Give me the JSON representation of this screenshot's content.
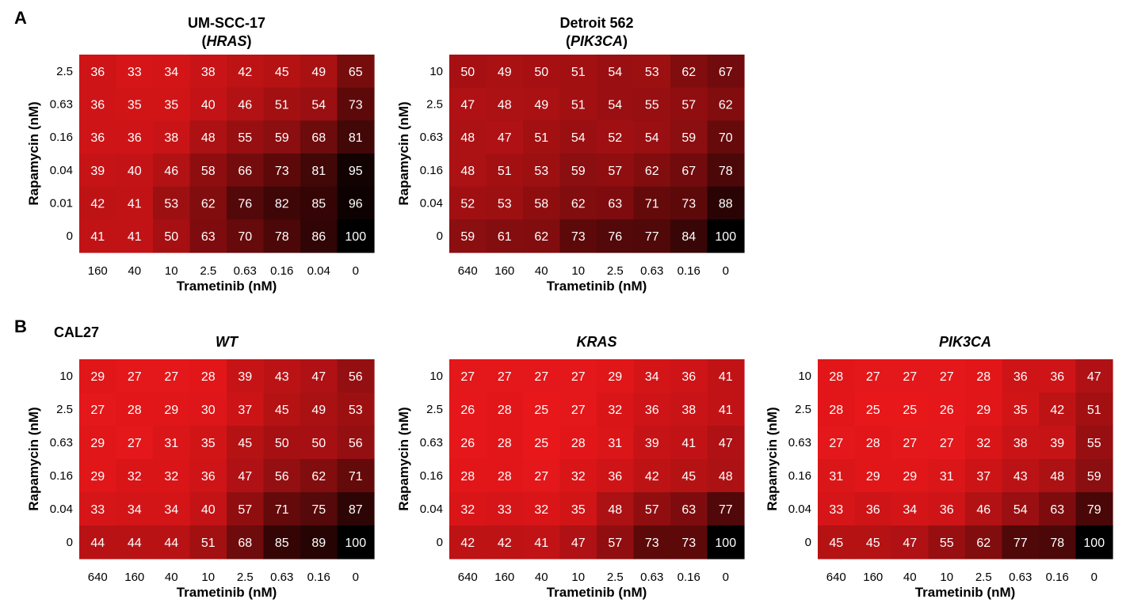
{
  "figure": {
    "panel_labels": [
      "A",
      "B"
    ],
    "panel_b_note": "CAL27",
    "scale": {
      "low_color": "#e8171a",
      "high_color": "#000000",
      "min": 25,
      "max": 100
    }
  },
  "chart_data": [
    {
      "type": "heatmap",
      "panel": "A",
      "title": "UM-SCC-17",
      "subtitle": "(HRAS)",
      "subtitle_parts": [
        "(",
        "HRAS",
        ")"
      ],
      "xlabel": "Trametinib (nM)",
      "ylabel": "Rapamycin (nM)",
      "x": [
        "160",
        "40",
        "10",
        "2.5",
        "0.63",
        "0.16",
        "0.04",
        "0"
      ],
      "y": [
        "2.5",
        "0.63",
        "0.16",
        "0.04",
        "0.01",
        "0"
      ],
      "values": [
        [
          36,
          33,
          34,
          38,
          42,
          45,
          49,
          65
        ],
        [
          36,
          35,
          35,
          40,
          46,
          51,
          54,
          73
        ],
        [
          36,
          36,
          38,
          48,
          55,
          59,
          68,
          81
        ],
        [
          39,
          40,
          46,
          58,
          66,
          73,
          81,
          95
        ],
        [
          42,
          41,
          53,
          62,
          76,
          82,
          85,
          96
        ],
        [
          41,
          41,
          50,
          63,
          70,
          78,
          86,
          100
        ]
      ]
    },
    {
      "type": "heatmap",
      "panel": "A",
      "title": "Detroit 562",
      "subtitle": "(PIK3CA)",
      "subtitle_parts": [
        "(",
        "PIK3CA",
        ")"
      ],
      "xlabel": "Trametinib (nM)",
      "ylabel": "Rapamycin (nM)",
      "x": [
        "640",
        "160",
        "40",
        "10",
        "2.5",
        "0.63",
        "0.16",
        "0"
      ],
      "y": [
        "10",
        "2.5",
        "0.63",
        "0.16",
        "0.04",
        "0"
      ],
      "values": [
        [
          50,
          49,
          50,
          51,
          54,
          53,
          62,
          67
        ],
        [
          47,
          48,
          49,
          51,
          54,
          55,
          57,
          62
        ],
        [
          48,
          47,
          51,
          54,
          52,
          54,
          59,
          70
        ],
        [
          48,
          51,
          53,
          59,
          57,
          62,
          67,
          78
        ],
        [
          52,
          53,
          58,
          62,
          63,
          71,
          73,
          88
        ],
        [
          59,
          61,
          62,
          73,
          76,
          77,
          84,
          100
        ]
      ]
    },
    {
      "type": "heatmap",
      "panel": "B",
      "title": "WT",
      "title_italic": true,
      "xlabel": "Trametinib (nM)",
      "ylabel": "Rapamycin (nM)",
      "x": [
        "640",
        "160",
        "40",
        "10",
        "2.5",
        "0.63",
        "0.16",
        "0"
      ],
      "y": [
        "10",
        "2.5",
        "0.63",
        "0.16",
        "0.04",
        "0"
      ],
      "values": [
        [
          29,
          27,
          27,
          28,
          39,
          43,
          47,
          56
        ],
        [
          27,
          28,
          29,
          30,
          37,
          45,
          49,
          53
        ],
        [
          29,
          27,
          31,
          35,
          45,
          50,
          50,
          56
        ],
        [
          29,
          32,
          32,
          36,
          47,
          56,
          62,
          71
        ],
        [
          33,
          34,
          34,
          40,
          57,
          71,
          75,
          87
        ],
        [
          44,
          44,
          44,
          51,
          68,
          85,
          89,
          100
        ]
      ]
    },
    {
      "type": "heatmap",
      "panel": "B",
      "title": "KRAS",
      "title_italic": true,
      "xlabel": "Trametinib (nM)",
      "ylabel": "Rapamycin (nM)",
      "x": [
        "640",
        "160",
        "40",
        "10",
        "2.5",
        "0.63",
        "0.16",
        "0"
      ],
      "y": [
        "10",
        "2.5",
        "0.63",
        "0.16",
        "0.04",
        "0"
      ],
      "values": [
        [
          27,
          27,
          27,
          27,
          29,
          34,
          36,
          41
        ],
        [
          26,
          28,
          25,
          27,
          32,
          36,
          38,
          41
        ],
        [
          26,
          28,
          25,
          28,
          31,
          39,
          41,
          47
        ],
        [
          28,
          28,
          27,
          32,
          36,
          42,
          45,
          48
        ],
        [
          32,
          33,
          32,
          35,
          48,
          57,
          63,
          77
        ],
        [
          42,
          42,
          41,
          47,
          57,
          73,
          73,
          100
        ]
      ]
    },
    {
      "type": "heatmap",
      "panel": "B",
      "title": "PIK3CA",
      "title_italic": true,
      "xlabel": "Trametinib (nM)",
      "ylabel": "Rapamycin (nM)",
      "x": [
        "640",
        "160",
        "40",
        "10",
        "2.5",
        "0.63",
        "0.16",
        "0"
      ],
      "y": [
        "10",
        "2.5",
        "0.63",
        "0.16",
        "0.04",
        "0"
      ],
      "values": [
        [
          28,
          27,
          27,
          27,
          28,
          36,
          36,
          47
        ],
        [
          28,
          25,
          25,
          26,
          29,
          35,
          42,
          51
        ],
        [
          27,
          28,
          27,
          27,
          32,
          38,
          39,
          55
        ],
        [
          31,
          29,
          29,
          31,
          37,
          43,
          48,
          59
        ],
        [
          33,
          36,
          34,
          36,
          46,
          54,
          63,
          79
        ],
        [
          45,
          45,
          47,
          55,
          62,
          77,
          78,
          100
        ]
      ]
    }
  ]
}
